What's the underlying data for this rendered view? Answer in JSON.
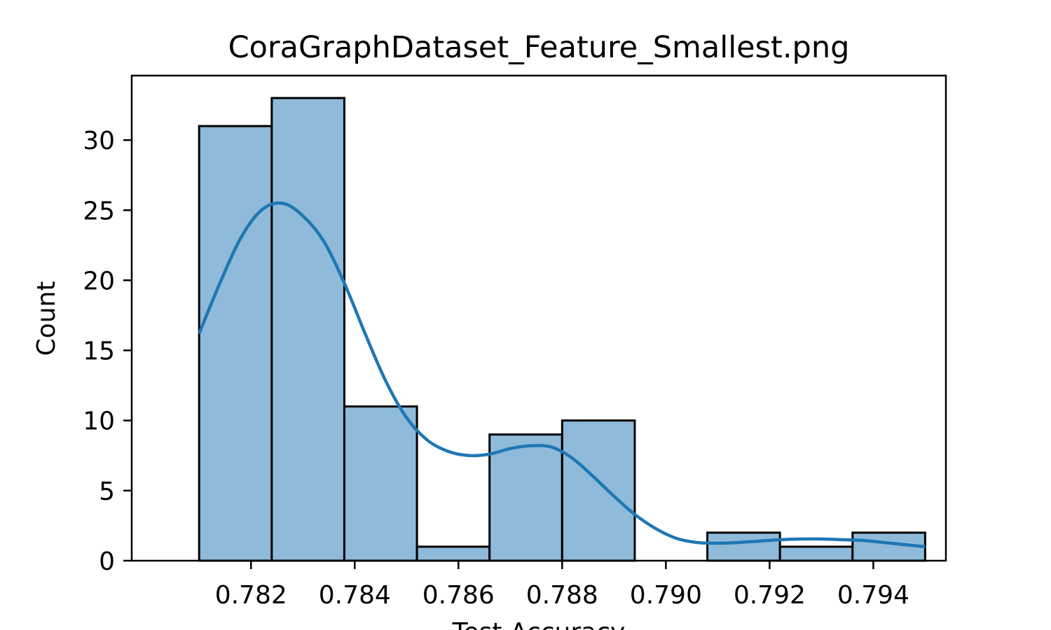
{
  "chart_data": {
    "type": "bar",
    "title": "CoraGraphDataset_Feature_Smallest.png",
    "xlabel": "Test Accuracy",
    "ylabel": "Count",
    "bins": [
      {
        "x0": 0.781,
        "x1": 0.7824,
        "count": 31
      },
      {
        "x0": 0.7824,
        "x1": 0.7838,
        "count": 33
      },
      {
        "x0": 0.7838,
        "x1": 0.7852,
        "count": 11
      },
      {
        "x0": 0.7852,
        "x1": 0.7866,
        "count": 1
      },
      {
        "x0": 0.7866,
        "x1": 0.788,
        "count": 9
      },
      {
        "x0": 0.788,
        "x1": 0.7894,
        "count": 10
      },
      {
        "x0": 0.7894,
        "x1": 0.7908,
        "count": 0
      },
      {
        "x0": 0.7908,
        "x1": 0.7922,
        "count": 2
      },
      {
        "x0": 0.7922,
        "x1": 0.7936,
        "count": 1
      },
      {
        "x0": 0.7936,
        "x1": 0.795,
        "count": 2
      }
    ],
    "kde": {
      "x": [
        0.781,
        0.7814,
        0.7818,
        0.7822,
        0.7826,
        0.783,
        0.7834,
        0.7838,
        0.7842,
        0.7846,
        0.785,
        0.7854,
        0.7858,
        0.7862,
        0.7866,
        0.787,
        0.7874,
        0.7878,
        0.7882,
        0.7886,
        0.789,
        0.7894,
        0.7898,
        0.7902,
        0.7906,
        0.791,
        0.7914,
        0.7918,
        0.7922,
        0.7926,
        0.793,
        0.7934,
        0.7938,
        0.7942,
        0.7946,
        0.795
      ],
      "y": [
        16.2,
        19.8,
        23.0,
        25.0,
        25.5,
        24.6,
        22.8,
        19.8,
        16.2,
        12.8,
        10.2,
        8.6,
        7.8,
        7.5,
        7.6,
        8.0,
        8.2,
        8.1,
        7.3,
        6.0,
        4.6,
        3.3,
        2.3,
        1.6,
        1.3,
        1.25,
        1.3,
        1.4,
        1.5,
        1.55,
        1.55,
        1.5,
        1.45,
        1.3,
        1.15,
        1.0
      ]
    },
    "xlim": [
      0.7797,
      0.7954
    ],
    "ylim": [
      0,
      34.6
    ],
    "xticks": [
      0.782,
      0.784,
      0.786,
      0.788,
      0.79,
      0.792,
      0.794
    ],
    "xtick_labels": [
      "0.782",
      "0.784",
      "0.786",
      "0.788",
      "0.790",
      "0.792",
      "0.794"
    ],
    "yticks": [
      0,
      5,
      10,
      15,
      20,
      25,
      30
    ],
    "ytick_labels": [
      "0",
      "5",
      "10",
      "15",
      "20",
      "25",
      "30"
    ],
    "grid": false,
    "colors": {
      "bar_fill": "#8fbad9",
      "bar_edge": "#000000",
      "kde_line": "#1f77b4"
    }
  }
}
